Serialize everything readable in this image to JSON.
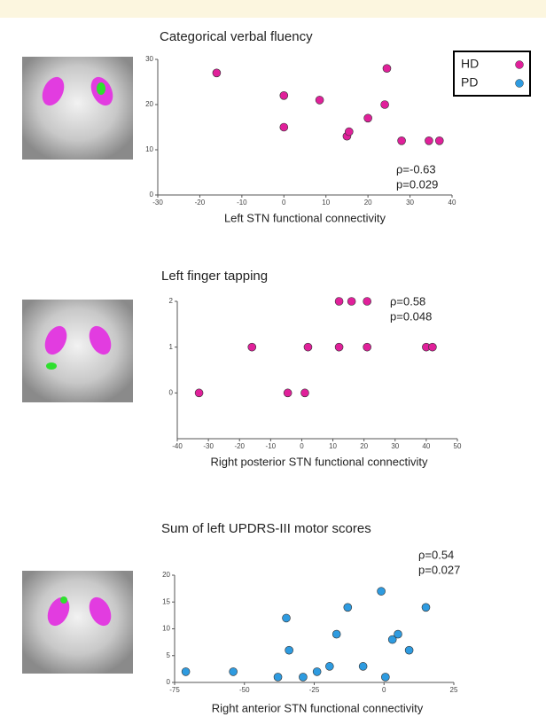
{
  "chart_data": [
    {
      "type": "scatter",
      "title": "Categorical verbal fluency",
      "xlabel": "Left STN functional connectivity",
      "x": [
        -16,
        0,
        0,
        8.5,
        15,
        15.5,
        20,
        24,
        24.5,
        28,
        34.5,
        37
      ],
      "series": [
        {
          "name": "HD",
          "color": "#e0209a",
          "values": [
            27,
            22,
            15,
            21,
            13,
            14,
            17,
            20,
            28,
            12,
            12,
            12
          ]
        }
      ],
      "xlim": [
        -30,
        40
      ],
      "xticks": [
        -30,
        -20,
        -10,
        0,
        10,
        20,
        30,
        40
      ],
      "ylim": [
        0,
        30
      ],
      "yticks": [
        0,
        10,
        20,
        30
      ],
      "annotations": [
        "ρ=-0.63",
        "p=0.029"
      ]
    },
    {
      "type": "scatter",
      "title": "Left finger tapping",
      "xlabel": "Right posterior STN functional connectivity",
      "x": [
        -33,
        -16,
        -4.5,
        1,
        2,
        12,
        12,
        16,
        21,
        21,
        40,
        42
      ],
      "values": [
        0,
        1,
        0,
        0,
        1,
        2,
        1,
        2,
        2,
        1,
        1,
        1
      ],
      "color": "#e0209a",
      "xlim": [
        -40,
        50
      ],
      "xticks": [
        -40,
        -30,
        -20,
        -10,
        0,
        10,
        20,
        30,
        40,
        50
      ],
      "ylim": [
        -1,
        2
      ],
      "yticks": [
        0,
        1,
        2
      ],
      "annotations": [
        "ρ=0.58",
        "p=0.048"
      ]
    },
    {
      "type": "scatter",
      "title": "Sum of left UPDRS-III motor scores",
      "xlabel": "Right anterior STN functional connectivity",
      "x": [
        -71,
        -54,
        -38,
        -35,
        -34,
        -29,
        -24,
        -19.5,
        -17,
        -13,
        -7.5,
        -1,
        0.5,
        3,
        5,
        9,
        15
      ],
      "series": [
        {
          "name": "PD",
          "color": "#2e9be0",
          "values": [
            2,
            2,
            1,
            12,
            6,
            1,
            2,
            3,
            9,
            14,
            3,
            17,
            1,
            8,
            9,
            6,
            14
          ]
        }
      ],
      "xlim": [
        -75,
        25
      ],
      "xticks": [
        -75,
        -50,
        -25,
        0,
        25
      ],
      "ylim": [
        0,
        20
      ],
      "yticks": [
        0,
        5,
        10,
        15,
        20
      ],
      "annotations": [
        "ρ=0.54",
        "p=0.027"
      ]
    }
  ]
}
